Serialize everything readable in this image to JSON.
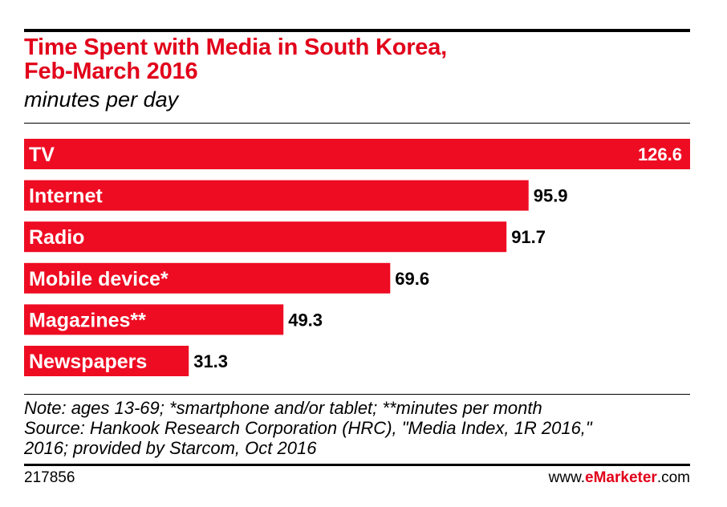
{
  "chart_data": {
    "type": "bar",
    "orientation": "horizontal",
    "title_line1": "Time Spent with Media in South Korea,",
    "title_line2": "Feb-March 2016",
    "subtitle": "minutes per day",
    "categories": [
      "TV",
      "Internet",
      "Radio",
      "Mobile device*",
      "Magazines**",
      "Newspapers"
    ],
    "values": [
      126.6,
      95.9,
      91.7,
      69.6,
      49.3,
      31.3
    ],
    "value_labels": [
      "126.6",
      "95.9",
      "91.7",
      "69.6",
      "49.3",
      "31.3"
    ],
    "xlim": [
      0,
      126.6
    ],
    "bar_color": "#ee0c22"
  },
  "notes": {
    "line1": "Note: ages 13-69; *smartphone and/or tablet; **minutes per month",
    "line2": "Source: Hankook Research Corporation (HRC), \"Media Index, 1R 2016,\"",
    "line3": "2016; provided by Starcom, Oct 2016"
  },
  "footer": {
    "chart_id": "217856",
    "brand_prefix": "www.",
    "brand_name": "eMarketer",
    "brand_suffix": ".com"
  },
  "colors": {
    "title": "#e1001a",
    "bar": "#ee0c22"
  }
}
